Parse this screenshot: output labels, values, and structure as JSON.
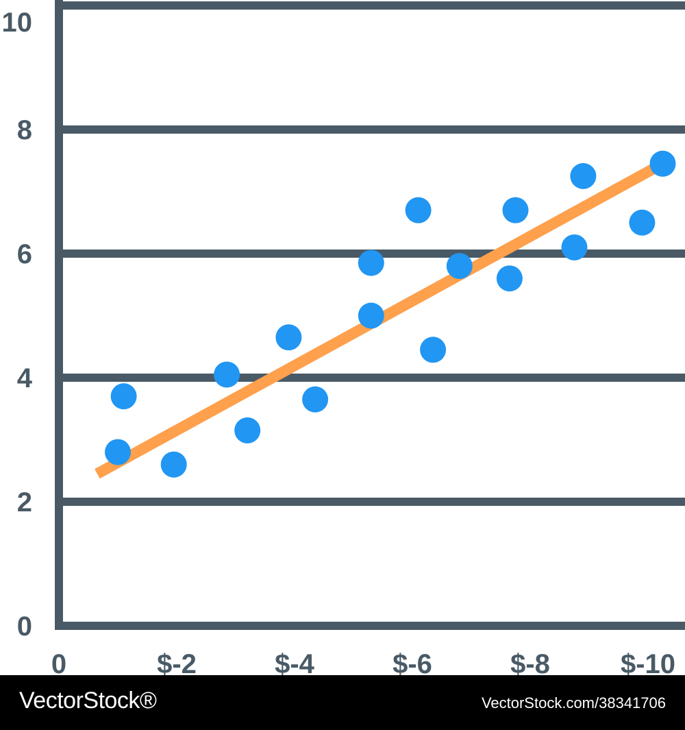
{
  "chart_data": {
    "type": "scatter",
    "title": "",
    "xlabel": "",
    "ylabel": "",
    "x_tick_labels": [
      "0",
      "$-2",
      "$-4",
      "$-6",
      "$-8",
      "$-10"
    ],
    "y_tick_labels": [
      "0",
      "2",
      "4",
      "6",
      "8",
      "10"
    ],
    "xlim": [
      0,
      10.5
    ],
    "ylim": [
      0,
      10
    ],
    "grid": true,
    "points": [
      {
        "x": 1.0,
        "y": 2.8
      },
      {
        "x": 1.1,
        "y": 3.7
      },
      {
        "x": 1.95,
        "y": 2.6
      },
      {
        "x": 2.85,
        "y": 4.05
      },
      {
        "x": 3.2,
        "y": 3.15
      },
      {
        "x": 3.9,
        "y": 4.65
      },
      {
        "x": 4.35,
        "y": 3.65
      },
      {
        "x": 5.3,
        "y": 5.0
      },
      {
        "x": 5.3,
        "y": 5.85
      },
      {
        "x": 6.1,
        "y": 6.7
      },
      {
        "x": 6.35,
        "y": 4.45
      },
      {
        "x": 6.8,
        "y": 5.8
      },
      {
        "x": 7.65,
        "y": 5.6
      },
      {
        "x": 7.75,
        "y": 6.7
      },
      {
        "x": 8.75,
        "y": 6.1
      },
      {
        "x": 8.9,
        "y": 7.25
      },
      {
        "x": 9.9,
        "y": 6.5
      },
      {
        "x": 10.25,
        "y": 7.45
      }
    ],
    "trend_line": {
      "x": [
        0.65,
        10.25
      ],
      "y": [
        2.45,
        7.45
      ]
    },
    "colors": {
      "axis": "#495a66",
      "points": "#2196f3",
      "trend": "#ffa04d"
    }
  },
  "footer": {
    "brand": "VectorStock®",
    "stock_ref": "VectorStock.com/38341706"
  }
}
